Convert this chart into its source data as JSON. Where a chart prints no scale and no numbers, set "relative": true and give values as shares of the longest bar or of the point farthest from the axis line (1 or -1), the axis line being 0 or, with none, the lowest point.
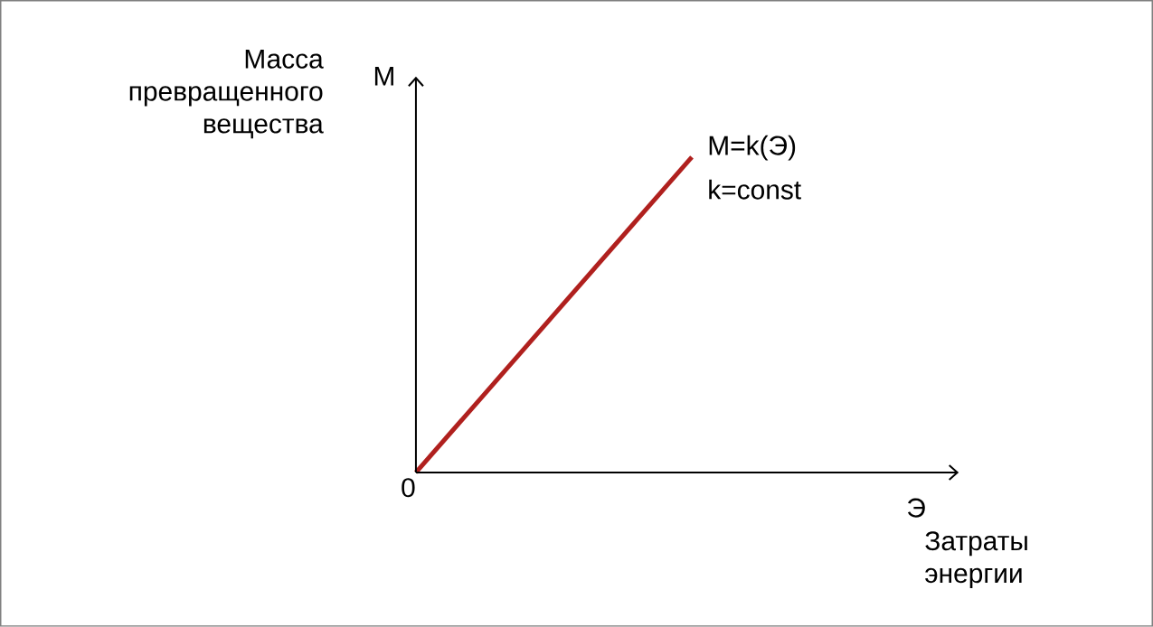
{
  "chart_data": {
    "type": "line",
    "relative": true,
    "ylabel": "Масса превращенного вещества",
    "xlabel": "Затраты энергии",
    "categories": [
      null,
      null
    ],
    "values": [
      0,
      1
    ],
    "color": "#b0201e",
    "annotations": [
      "М",
      "Э",
      "0",
      "M=k(Э)",
      "k=const"
    ]
  }
}
